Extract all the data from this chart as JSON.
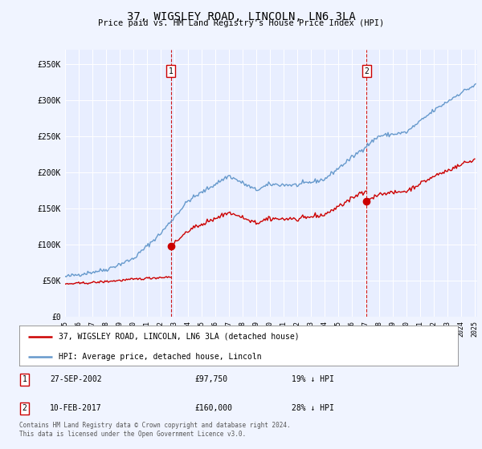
{
  "title": "37, WIGSLEY ROAD, LINCOLN, LN6 3LA",
  "subtitle": "Price paid vs. HM Land Registry's House Price Index (HPI)",
  "legend_label_red": "37, WIGSLEY ROAD, LINCOLN, LN6 3LA (detached house)",
  "legend_label_blue": "HPI: Average price, detached house, Lincoln",
  "annotation1_date": "27-SEP-2002",
  "annotation1_price": "£97,750",
  "annotation1_hpi": "19% ↓ HPI",
  "annotation1_year": 2002.75,
  "annotation1_value": 97750,
  "annotation2_date": "10-FEB-2017",
  "annotation2_price": "£160,000",
  "annotation2_hpi": "28% ↓ HPI",
  "annotation2_year": 2017.1,
  "annotation2_value": 160000,
  "footer": "Contains HM Land Registry data © Crown copyright and database right 2024.\nThis data is licensed under the Open Government Licence v3.0.",
  "bg_color": "#f0f4ff",
  "plot_bg_color": "#e8eeff",
  "red_color": "#cc0000",
  "blue_color": "#6699cc",
  "ylim": [
    0,
    370000
  ],
  "yticks": [
    0,
    50000,
    100000,
    150000,
    200000,
    250000,
    300000,
    350000
  ],
  "ytick_labels": [
    "£0",
    "£50K",
    "£100K",
    "£150K",
    "£200K",
    "£250K",
    "£300K",
    "£350K"
  ]
}
